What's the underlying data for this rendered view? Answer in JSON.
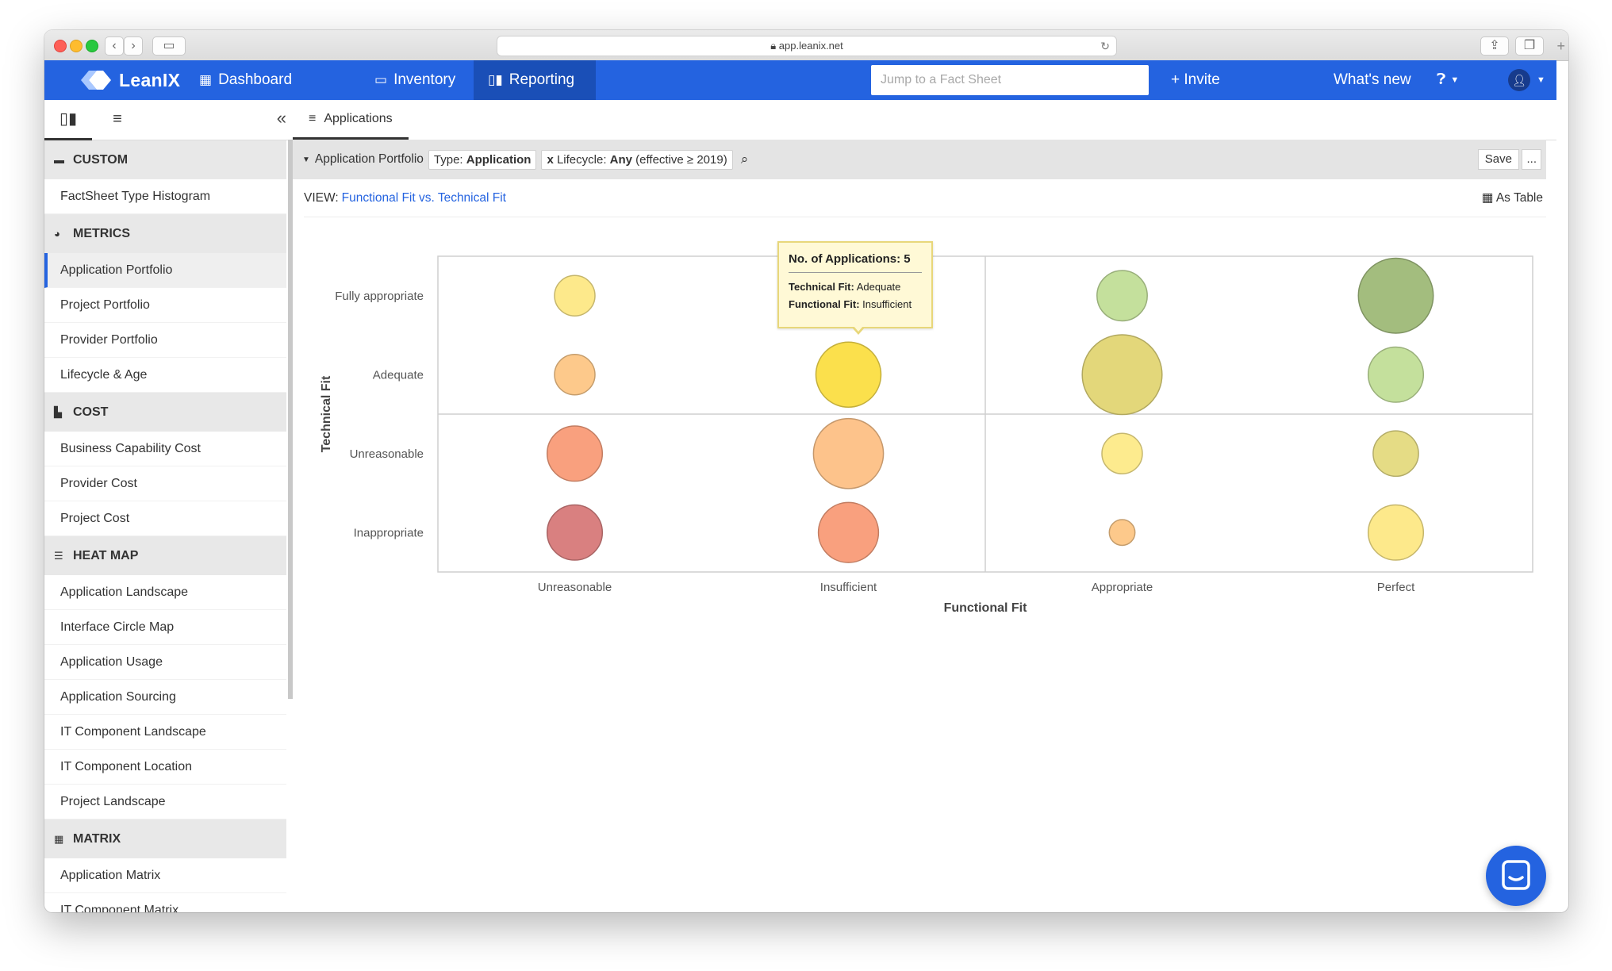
{
  "browser": {
    "url": "app.leanix.net"
  },
  "nav": {
    "brand": "LeanIX",
    "items": [
      {
        "label": "Dashboard",
        "icon": "grid-icon"
      },
      {
        "label": "Inventory",
        "icon": "inventory-icon"
      },
      {
        "label": "Reporting",
        "icon": "bar-chart-icon",
        "active": true
      }
    ],
    "search_placeholder": "Jump to a Fact Sheet",
    "invite": "+ Invite",
    "whats_new": "What's new",
    "accent": "#2463e0"
  },
  "sidebar": {
    "sections": [
      {
        "title": "CUSTOM",
        "icon": "folder-icon",
        "items": [
          "FactSheet Type Histogram"
        ]
      },
      {
        "title": "METRICS",
        "icon": "gauge-icon",
        "items": [
          "Application Portfolio",
          "Project Portfolio",
          "Provider Portfolio",
          "Lifecycle & Age"
        ]
      },
      {
        "title": "COST",
        "icon": "bar-chart-icon",
        "items": [
          "Business Capability Cost",
          "Provider Cost",
          "Project Cost"
        ]
      },
      {
        "title": "HEAT MAP",
        "icon": "list-icon",
        "items": [
          "Application Landscape",
          "Interface Circle Map",
          "Application Usage",
          "Application Sourcing",
          "IT Component Landscape",
          "IT Component Location",
          "Project Landscape"
        ]
      },
      {
        "title": "MATRIX",
        "icon": "grid-icon",
        "items": [
          "Application Matrix",
          "IT Component Matrix"
        ]
      }
    ],
    "active_item": "Application Portfolio"
  },
  "main": {
    "tab": "Applications",
    "filter": {
      "report": "Application Portfolio",
      "type_label": "Type:",
      "type_value": "Application",
      "lifecycle_x": "x",
      "lifecycle_label": "Lifecycle:",
      "lifecycle_value": "Any",
      "lifecycle_extra": "(effective ≥ 2019)",
      "save": "Save",
      "more": "..."
    },
    "view_label": "VIEW:",
    "view_value": "Functional Fit vs. Technical Fit",
    "as_table": "As Table"
  },
  "tooltip": {
    "title": "No. of Applications: 5",
    "tech_label": "Technical Fit:",
    "tech_value": "Adequate",
    "func_label": "Functional Fit:",
    "func_value": "Insufficient"
  },
  "chart_data": {
    "type": "scatter",
    "xlabel": "Functional Fit",
    "ylabel": "Technical Fit",
    "x_categories": [
      "Unreasonable",
      "Insufficient",
      "Appropriate",
      "Perfect"
    ],
    "y_categories": [
      "Fully appropriate",
      "Adequate",
      "Unreasonable",
      "Inappropriate"
    ],
    "bubbles": [
      {
        "x": "Unreasonable",
        "y": "Fully appropriate",
        "size": 2.5,
        "color": "#fde98b"
      },
      {
        "x": "Insufficient",
        "y": "Fully appropriate",
        "size": 2.5,
        "color": "#fde98b"
      },
      {
        "x": "Appropriate",
        "y": "Fully appropriate",
        "size": 3.5,
        "color": "#c4e09c"
      },
      {
        "x": "Perfect",
        "y": "Fully appropriate",
        "size": 6,
        "color": "#a3bd7e"
      },
      {
        "x": "Unreasonable",
        "y": "Adequate",
        "size": 2.5,
        "color": "#fdc98b"
      },
      {
        "x": "Insufficient",
        "y": "Adequate",
        "size": 5,
        "color": "#fbe04c"
      },
      {
        "x": "Appropriate",
        "y": "Adequate",
        "size": 6.5,
        "color": "#e3d77a"
      },
      {
        "x": "Perfect",
        "y": "Adequate",
        "size": 4,
        "color": "#c4e09c"
      },
      {
        "x": "Unreasonable",
        "y": "Unreasonable",
        "size": 4,
        "color": "#f9a07e"
      },
      {
        "x": "Insufficient",
        "y": "Unreasonable",
        "size": 5.5,
        "color": "#fdc38b"
      },
      {
        "x": "Appropriate",
        "y": "Unreasonable",
        "size": 2.5,
        "color": "#fdeb8e"
      },
      {
        "x": "Perfect",
        "y": "Unreasonable",
        "size": 3,
        "color": "#e5dc85"
      },
      {
        "x": "Unreasonable",
        "y": "Inappropriate",
        "size": 4,
        "color": "#d98080"
      },
      {
        "x": "Insufficient",
        "y": "Inappropriate",
        "size": 4.5,
        "color": "#f9a07e"
      },
      {
        "x": "Appropriate",
        "y": "Inappropriate",
        "size": 1,
        "color": "#fdc98b"
      },
      {
        "x": "Perfect",
        "y": "Inappropriate",
        "size": 4,
        "color": "#fde98b"
      }
    ]
  }
}
